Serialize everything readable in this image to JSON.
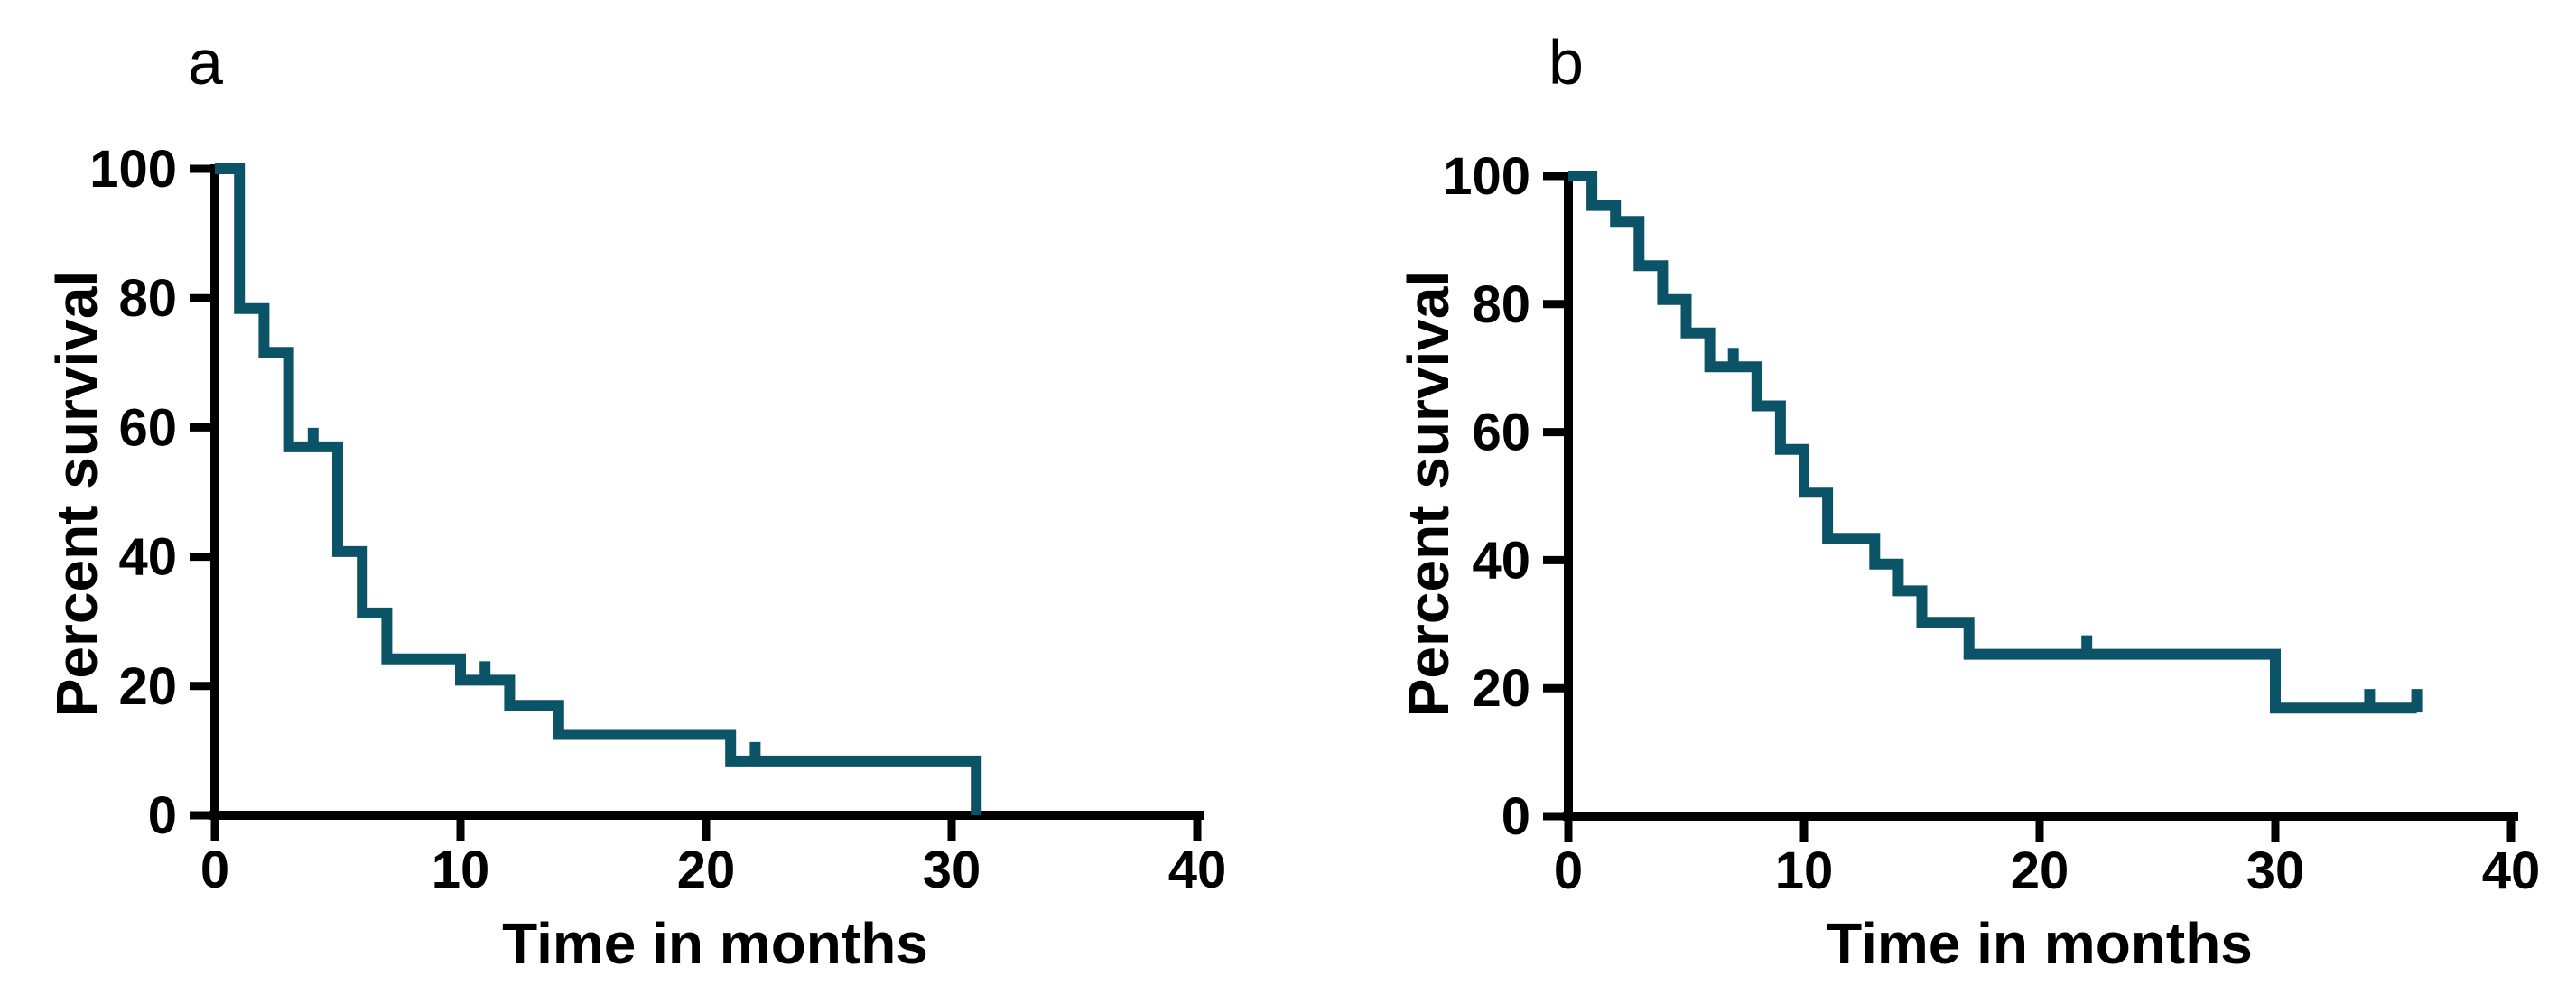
{
  "figure": {
    "background": "#ffffff",
    "axis_color": "#000000",
    "curve_color": "#0b5367",
    "text_color": "#000000"
  },
  "chart_data": [
    {
      "type": "line",
      "step": true,
      "panel_label": "a",
      "xlabel": "Time in months",
      "ylabel": "Percent survival",
      "xlim": [
        0,
        40
      ],
      "ylim": [
        0,
        100
      ],
      "xticks": [
        0,
        10,
        20,
        30,
        40
      ],
      "yticks": [
        0,
        20,
        40,
        60,
        80,
        100
      ],
      "grid": false,
      "legend": null,
      "series": [
        {
          "name": "survival",
          "points": [
            [
              0,
              100
            ],
            [
              1,
              100
            ],
            [
              1,
              78.4
            ],
            [
              2,
              78.4
            ],
            [
              2,
              71.6
            ],
            [
              3,
              71.6
            ],
            [
              3,
              57.0
            ],
            [
              5,
              57.0
            ],
            [
              5,
              40.8
            ],
            [
              6,
              40.8
            ],
            [
              6,
              31.3
            ],
            [
              7,
              31.3
            ],
            [
              7,
              24.2
            ],
            [
              10,
              24.2
            ],
            [
              10,
              20.9
            ],
            [
              12,
              20.9
            ],
            [
              12,
              17.0
            ],
            [
              14,
              17.0
            ],
            [
              14,
              12.5
            ],
            [
              21,
              12.5
            ],
            [
              21,
              8.4
            ],
            [
              31,
              8.4
            ],
            [
              31,
              0
            ]
          ],
          "censor_marks": [
            [
              4,
              57.0
            ],
            [
              11,
              20.9
            ],
            [
              22,
              8.4
            ]
          ]
        }
      ]
    },
    {
      "type": "line",
      "step": true,
      "panel_label": "b",
      "xlabel": "Time in months",
      "ylabel": "Percent survival",
      "xlim": [
        0,
        40
      ],
      "ylim": [
        0,
        100
      ],
      "xticks": [
        0,
        10,
        20,
        30,
        40
      ],
      "yticks": [
        0,
        20,
        40,
        60,
        80,
        100
      ],
      "grid": false,
      "legend": null,
      "series": [
        {
          "name": "survival",
          "points": [
            [
              0,
              100
            ],
            [
              1,
              100
            ],
            [
              1,
              95.4
            ],
            [
              2,
              95.4
            ],
            [
              2,
              92.9
            ],
            [
              3,
              92.9
            ],
            [
              3,
              86.0
            ],
            [
              4,
              86.0
            ],
            [
              4,
              80.7
            ],
            [
              5,
              80.7
            ],
            [
              5,
              75.5
            ],
            [
              6,
              75.5
            ],
            [
              6,
              70.2
            ],
            [
              8,
              70.2
            ],
            [
              8,
              64.1
            ],
            [
              9,
              64.1
            ],
            [
              9,
              57.3
            ],
            [
              10,
              57.3
            ],
            [
              10,
              50.6
            ],
            [
              11,
              50.6
            ],
            [
              11,
              43.4
            ],
            [
              13,
              43.4
            ],
            [
              13,
              39.4
            ],
            [
              14,
              39.4
            ],
            [
              14,
              35.2
            ],
            [
              15,
              35.2
            ],
            [
              15,
              30.3
            ],
            [
              17,
              30.3
            ],
            [
              17,
              25.3
            ],
            [
              30,
              25.3
            ],
            [
              30,
              16.9
            ],
            [
              36,
              16.9
            ]
          ],
          "censor_marks": [
            [
              7,
              70.2
            ],
            [
              22,
              25.3
            ],
            [
              34,
              16.9
            ],
            [
              36,
              16.9
            ]
          ]
        }
      ]
    }
  ]
}
